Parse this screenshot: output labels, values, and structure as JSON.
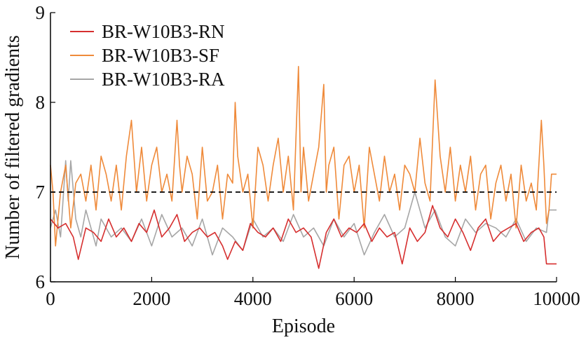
{
  "chart_data": {
    "type": "line",
    "title": "",
    "xlabel": "Episode",
    "ylabel": "Number of filtered gradients",
    "xlim": [
      0,
      10000
    ],
    "ylim": [
      6,
      9
    ],
    "xticks": [
      0,
      2000,
      4000,
      6000,
      8000,
      10000
    ],
    "yticks": [
      6,
      7,
      8,
      9
    ],
    "reference_line": {
      "y": 7,
      "style": "dashed",
      "color": "#000000"
    },
    "legend_position": "top-left",
    "grid": false,
    "series": [
      {
        "name": "BR-W10B3-RN",
        "color": "#d62f2f",
        "x": [
          0,
          150,
          300,
          450,
          550,
          700,
          850,
          1000,
          1150,
          1300,
          1450,
          1600,
          1750,
          1900,
          2050,
          2200,
          2350,
          2500,
          2650,
          2800,
          2950,
          3100,
          3250,
          3400,
          3500,
          3650,
          3800,
          3950,
          4100,
          4250,
          4400,
          4550,
          4700,
          4850,
          5000,
          5150,
          5300,
          5450,
          5600,
          5750,
          5900,
          6050,
          6200,
          6350,
          6500,
          6650,
          6800,
          6950,
          7100,
          7250,
          7400,
          7550,
          7700,
          7850,
          8000,
          8150,
          8300,
          8450,
          8600,
          8750,
          8900,
          9050,
          9200,
          9350,
          9500,
          9650,
          9750,
          9800,
          10000
        ],
        "y": [
          6.7,
          6.6,
          6.65,
          6.5,
          6.25,
          6.6,
          6.55,
          6.45,
          6.7,
          6.5,
          6.6,
          6.45,
          6.65,
          6.55,
          6.8,
          6.5,
          6.6,
          6.75,
          6.45,
          6.55,
          6.6,
          6.5,
          6.55,
          6.4,
          6.25,
          6.45,
          6.35,
          6.65,
          6.55,
          6.5,
          6.6,
          6.45,
          6.7,
          6.55,
          6.6,
          6.5,
          6.15,
          6.55,
          6.7,
          6.5,
          6.6,
          6.55,
          6.65,
          6.45,
          6.6,
          6.5,
          6.55,
          6.2,
          6.6,
          6.45,
          6.55,
          6.85,
          6.6,
          6.5,
          6.7,
          6.55,
          6.35,
          6.6,
          6.7,
          6.45,
          6.55,
          6.6,
          6.65,
          6.45,
          6.55,
          6.6,
          6.5,
          6.2,
          6.2
        ]
      },
      {
        "name": "BR-W10B3-SF",
        "color": "#ef8a3a",
        "x": [
          0,
          50,
          100,
          200,
          300,
          400,
          500,
          600,
          700,
          800,
          900,
          1000,
          1100,
          1200,
          1300,
          1400,
          1500,
          1600,
          1700,
          1800,
          1900,
          2000,
          2100,
          2200,
          2300,
          2400,
          2500,
          2550,
          2600,
          2700,
          2800,
          2900,
          3000,
          3100,
          3200,
          3300,
          3400,
          3500,
          3600,
          3650,
          3700,
          3800,
          3900,
          4000,
          4100,
          4200,
          4300,
          4400,
          4500,
          4600,
          4700,
          4800,
          4900,
          4950,
          5000,
          5100,
          5200,
          5300,
          5400,
          5450,
          5500,
          5600,
          5700,
          5800,
          5900,
          6000,
          6100,
          6200,
          6300,
          6400,
          6500,
          6600,
          6700,
          6800,
          6900,
          7000,
          7100,
          7200,
          7300,
          7400,
          7500,
          7600,
          7700,
          7800,
          7900,
          8000,
          8100,
          8200,
          8300,
          8400,
          8500,
          8600,
          8700,
          8800,
          8900,
          9000,
          9100,
          9200,
          9300,
          9400,
          9500,
          9600,
          9700,
          9750,
          9800,
          9850,
          9900,
          10000
        ],
        "y": [
          7.3,
          7.0,
          6.4,
          7.0,
          7.3,
          6.6,
          7.1,
          7.2,
          6.9,
          7.3,
          6.8,
          7.4,
          7.2,
          6.9,
          7.3,
          6.8,
          7.4,
          7.8,
          7.0,
          7.5,
          6.9,
          7.3,
          7.5,
          7.0,
          7.2,
          6.9,
          7.8,
          7.3,
          7.0,
          7.4,
          7.2,
          6.7,
          7.5,
          6.9,
          7.0,
          7.3,
          6.7,
          7.2,
          7.1,
          8.0,
          7.4,
          7.0,
          7.2,
          6.6,
          7.5,
          7.3,
          6.9,
          7.3,
          7.6,
          7.0,
          7.4,
          6.8,
          8.4,
          7.0,
          7.5,
          6.9,
          7.2,
          7.5,
          8.2,
          7.0,
          7.3,
          7.5,
          6.7,
          7.3,
          7.4,
          7.0,
          7.3,
          6.6,
          7.5,
          7.2,
          6.9,
          7.4,
          7.0,
          7.2,
          6.8,
          7.3,
          7.2,
          7.0,
          7.6,
          7.1,
          6.9,
          8.25,
          7.4,
          7.0,
          7.5,
          6.9,
          7.3,
          7.0,
          7.4,
          6.8,
          7.2,
          7.3,
          6.7,
          7.1,
          7.3,
          6.9,
          7.2,
          6.6,
          7.3,
          6.9,
          7.1,
          6.8,
          7.8,
          7.3,
          6.65,
          6.8,
          7.2,
          7.2
        ]
      },
      {
        "name": "BR-W10B3-RA",
        "color": "#a6a6a6",
        "x": [
          0,
          100,
          200,
          300,
          350,
          400,
          500,
          600,
          700,
          800,
          900,
          1000,
          1200,
          1400,
          1600,
          1800,
          2000,
          2200,
          2400,
          2600,
          2800,
          3000,
          3200,
          3400,
          3600,
          3800,
          4000,
          4200,
          4400,
          4600,
          4800,
          5000,
          5200,
          5400,
          5600,
          5800,
          6000,
          6200,
          6400,
          6600,
          6800,
          7000,
          7200,
          7400,
          7600,
          7800,
          8000,
          8200,
          8400,
          8600,
          8800,
          9000,
          9200,
          9400,
          9600,
          9800,
          9850,
          10000
        ],
        "y": [
          6.6,
          6.8,
          6.5,
          7.35,
          6.9,
          7.35,
          6.7,
          6.5,
          6.8,
          6.6,
          6.4,
          6.7,
          6.5,
          6.6,
          6.45,
          6.7,
          6.4,
          6.75,
          6.5,
          6.6,
          6.4,
          6.7,
          6.3,
          6.6,
          6.5,
          6.35,
          6.7,
          6.5,
          6.6,
          6.45,
          6.75,
          6.5,
          6.6,
          6.4,
          6.7,
          6.5,
          6.65,
          6.3,
          6.55,
          6.75,
          6.5,
          6.6,
          7.0,
          6.6,
          6.8,
          6.5,
          6.4,
          6.7,
          6.55,
          6.65,
          6.6,
          6.5,
          6.7,
          6.45,
          6.6,
          6.55,
          6.8,
          6.8
        ]
      }
    ]
  }
}
